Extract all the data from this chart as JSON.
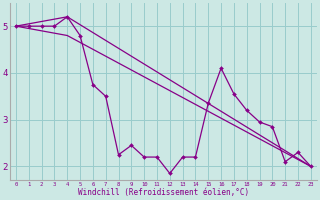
{
  "bg_color": "#cce8e4",
  "line_color": "#880088",
  "grid_color": "#99cccc",
  "spine_color": "#aaaaaa",
  "xlabel": "Windchill (Refroidissement éolien,°C)",
  "xlabel_color": "#880088",
  "ylabel_ticks": [
    2,
    3,
    4,
    5
  ],
  "xlim": [
    -0.5,
    23.5
  ],
  "ylim": [
    1.7,
    5.5
  ],
  "line1_x": [
    0,
    1,
    2,
    3,
    4,
    5,
    6,
    7,
    8,
    9,
    10,
    11,
    12,
    13,
    14,
    15,
    16,
    17,
    18,
    19,
    20,
    21,
    22,
    23
  ],
  "line1_y": [
    5.0,
    5.0,
    5.0,
    5.0,
    5.2,
    4.8,
    3.75,
    3.5,
    2.25,
    2.45,
    2.2,
    2.2,
    1.85,
    2.2,
    2.2,
    3.35,
    4.1,
    3.55,
    3.2,
    2.95,
    2.85,
    2.1,
    2.3,
    2.0
  ],
  "line2_x": [
    0,
    4,
    23
  ],
  "line2_y": [
    5.0,
    5.2,
    2.0
  ],
  "line3_x": [
    0,
    4,
    23
  ],
  "line3_y": [
    5.0,
    4.8,
    2.0
  ],
  "xtick_labels": [
    "0",
    "1",
    "2",
    "3",
    "4",
    "5",
    "6",
    "7",
    "8",
    "9",
    "10",
    "11",
    "12",
    "13",
    "14",
    "15",
    "16",
    "17",
    "18",
    "19",
    "20",
    "21",
    "22",
    "23"
  ]
}
